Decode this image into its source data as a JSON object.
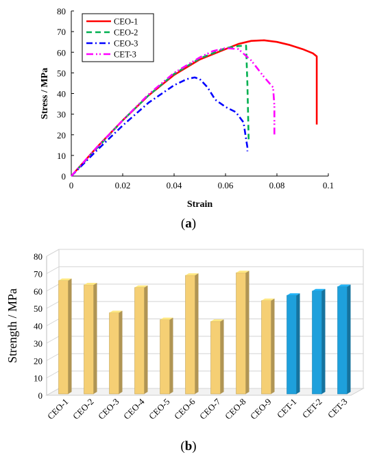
{
  "chart_data": [
    {
      "type": "line",
      "xlabel": "Strain",
      "ylabel": "Stress / MPa",
      "xlim": [
        0,
        0.1
      ],
      "ylim": [
        0,
        80
      ],
      "xticks": [
        "0",
        "0.02",
        "0.04",
        "0.06",
        "0.08",
        "0.1"
      ],
      "yticks": [
        "0",
        "10",
        "20",
        "30",
        "40",
        "50",
        "60",
        "70",
        "80"
      ],
      "legend": "top-left",
      "grid": false,
      "series": [
        {
          "name": "CEO-1",
          "color": "#ff0000",
          "style": "solid",
          "x": [
            0,
            0.01,
            0.02,
            0.03,
            0.04,
            0.05,
            0.06,
            0.065,
            0.07,
            0.075,
            0.08,
            0.085,
            0.09,
            0.094,
            0.0955,
            0.0955
          ],
          "y": [
            0,
            14,
            27,
            39,
            49,
            56.5,
            61.5,
            64,
            65.5,
            65.8,
            65,
            63.5,
            61.5,
            59.5,
            58,
            25
          ]
        },
        {
          "name": "CEO-2",
          "color": "#00b050",
          "style": "dashed",
          "x": [
            0,
            0.01,
            0.02,
            0.03,
            0.04,
            0.05,
            0.06,
            0.065,
            0.068,
            0.0685,
            0.069
          ],
          "y": [
            0,
            13.5,
            27,
            39,
            49.5,
            57,
            62,
            63,
            63.2,
            45,
            17
          ]
        },
        {
          "name": "CEO-3",
          "color": "#0000ff",
          "style": "dashdot",
          "x": [
            0,
            0.01,
            0.02,
            0.03,
            0.04,
            0.045,
            0.048,
            0.05,
            0.053,
            0.056,
            0.06,
            0.064,
            0.067,
            0.068,
            0.0685,
            0.0685
          ],
          "y": [
            0,
            12.5,
            24.5,
            35.5,
            44,
            47,
            47.8,
            47,
            43,
            37,
            33.5,
            31,
            26,
            18,
            14,
            12
          ]
        },
        {
          "name": "CET-3",
          "color": "#ff00ff",
          "style": "dashdotdot",
          "x": [
            0,
            0.01,
            0.02,
            0.03,
            0.04,
            0.05,
            0.055,
            0.06,
            0.065,
            0.07,
            0.075,
            0.0785,
            0.079,
            0.079
          ],
          "y": [
            0,
            14,
            27,
            39.5,
            50,
            57.5,
            60.5,
            62,
            61.5,
            56,
            48,
            43,
            34,
            19
          ]
        }
      ]
    },
    {
      "type": "bar",
      "ylabel": "Strength / MPa",
      "ylim": [
        0,
        80
      ],
      "yticks": [
        "0",
        "10",
        "20",
        "30",
        "40",
        "50",
        "60",
        "70",
        "80"
      ],
      "categories": [
        "CEO-1",
        "CEO-2",
        "CEO-3",
        "CEO-4",
        "CEO-5",
        "CEO-6",
        "CEO-7",
        "CEO-8",
        "CEO-9",
        "CET-1",
        "CET-2",
        "CET-3"
      ],
      "values": [
        66,
        63.5,
        47.5,
        62,
        43.5,
        69,
        42.5,
        70.5,
        54.5,
        57.5,
        60,
        62.5
      ],
      "colors": [
        "#f5cf74",
        "#f5cf74",
        "#f5cf74",
        "#f5cf74",
        "#f5cf74",
        "#f5cf74",
        "#f5cf74",
        "#f5cf74",
        "#f5cf74",
        "#1ea0dc",
        "#1ea0dc",
        "#1ea0dc"
      ],
      "grid": true
    }
  ],
  "captions": {
    "a": "a",
    "b": "b"
  }
}
